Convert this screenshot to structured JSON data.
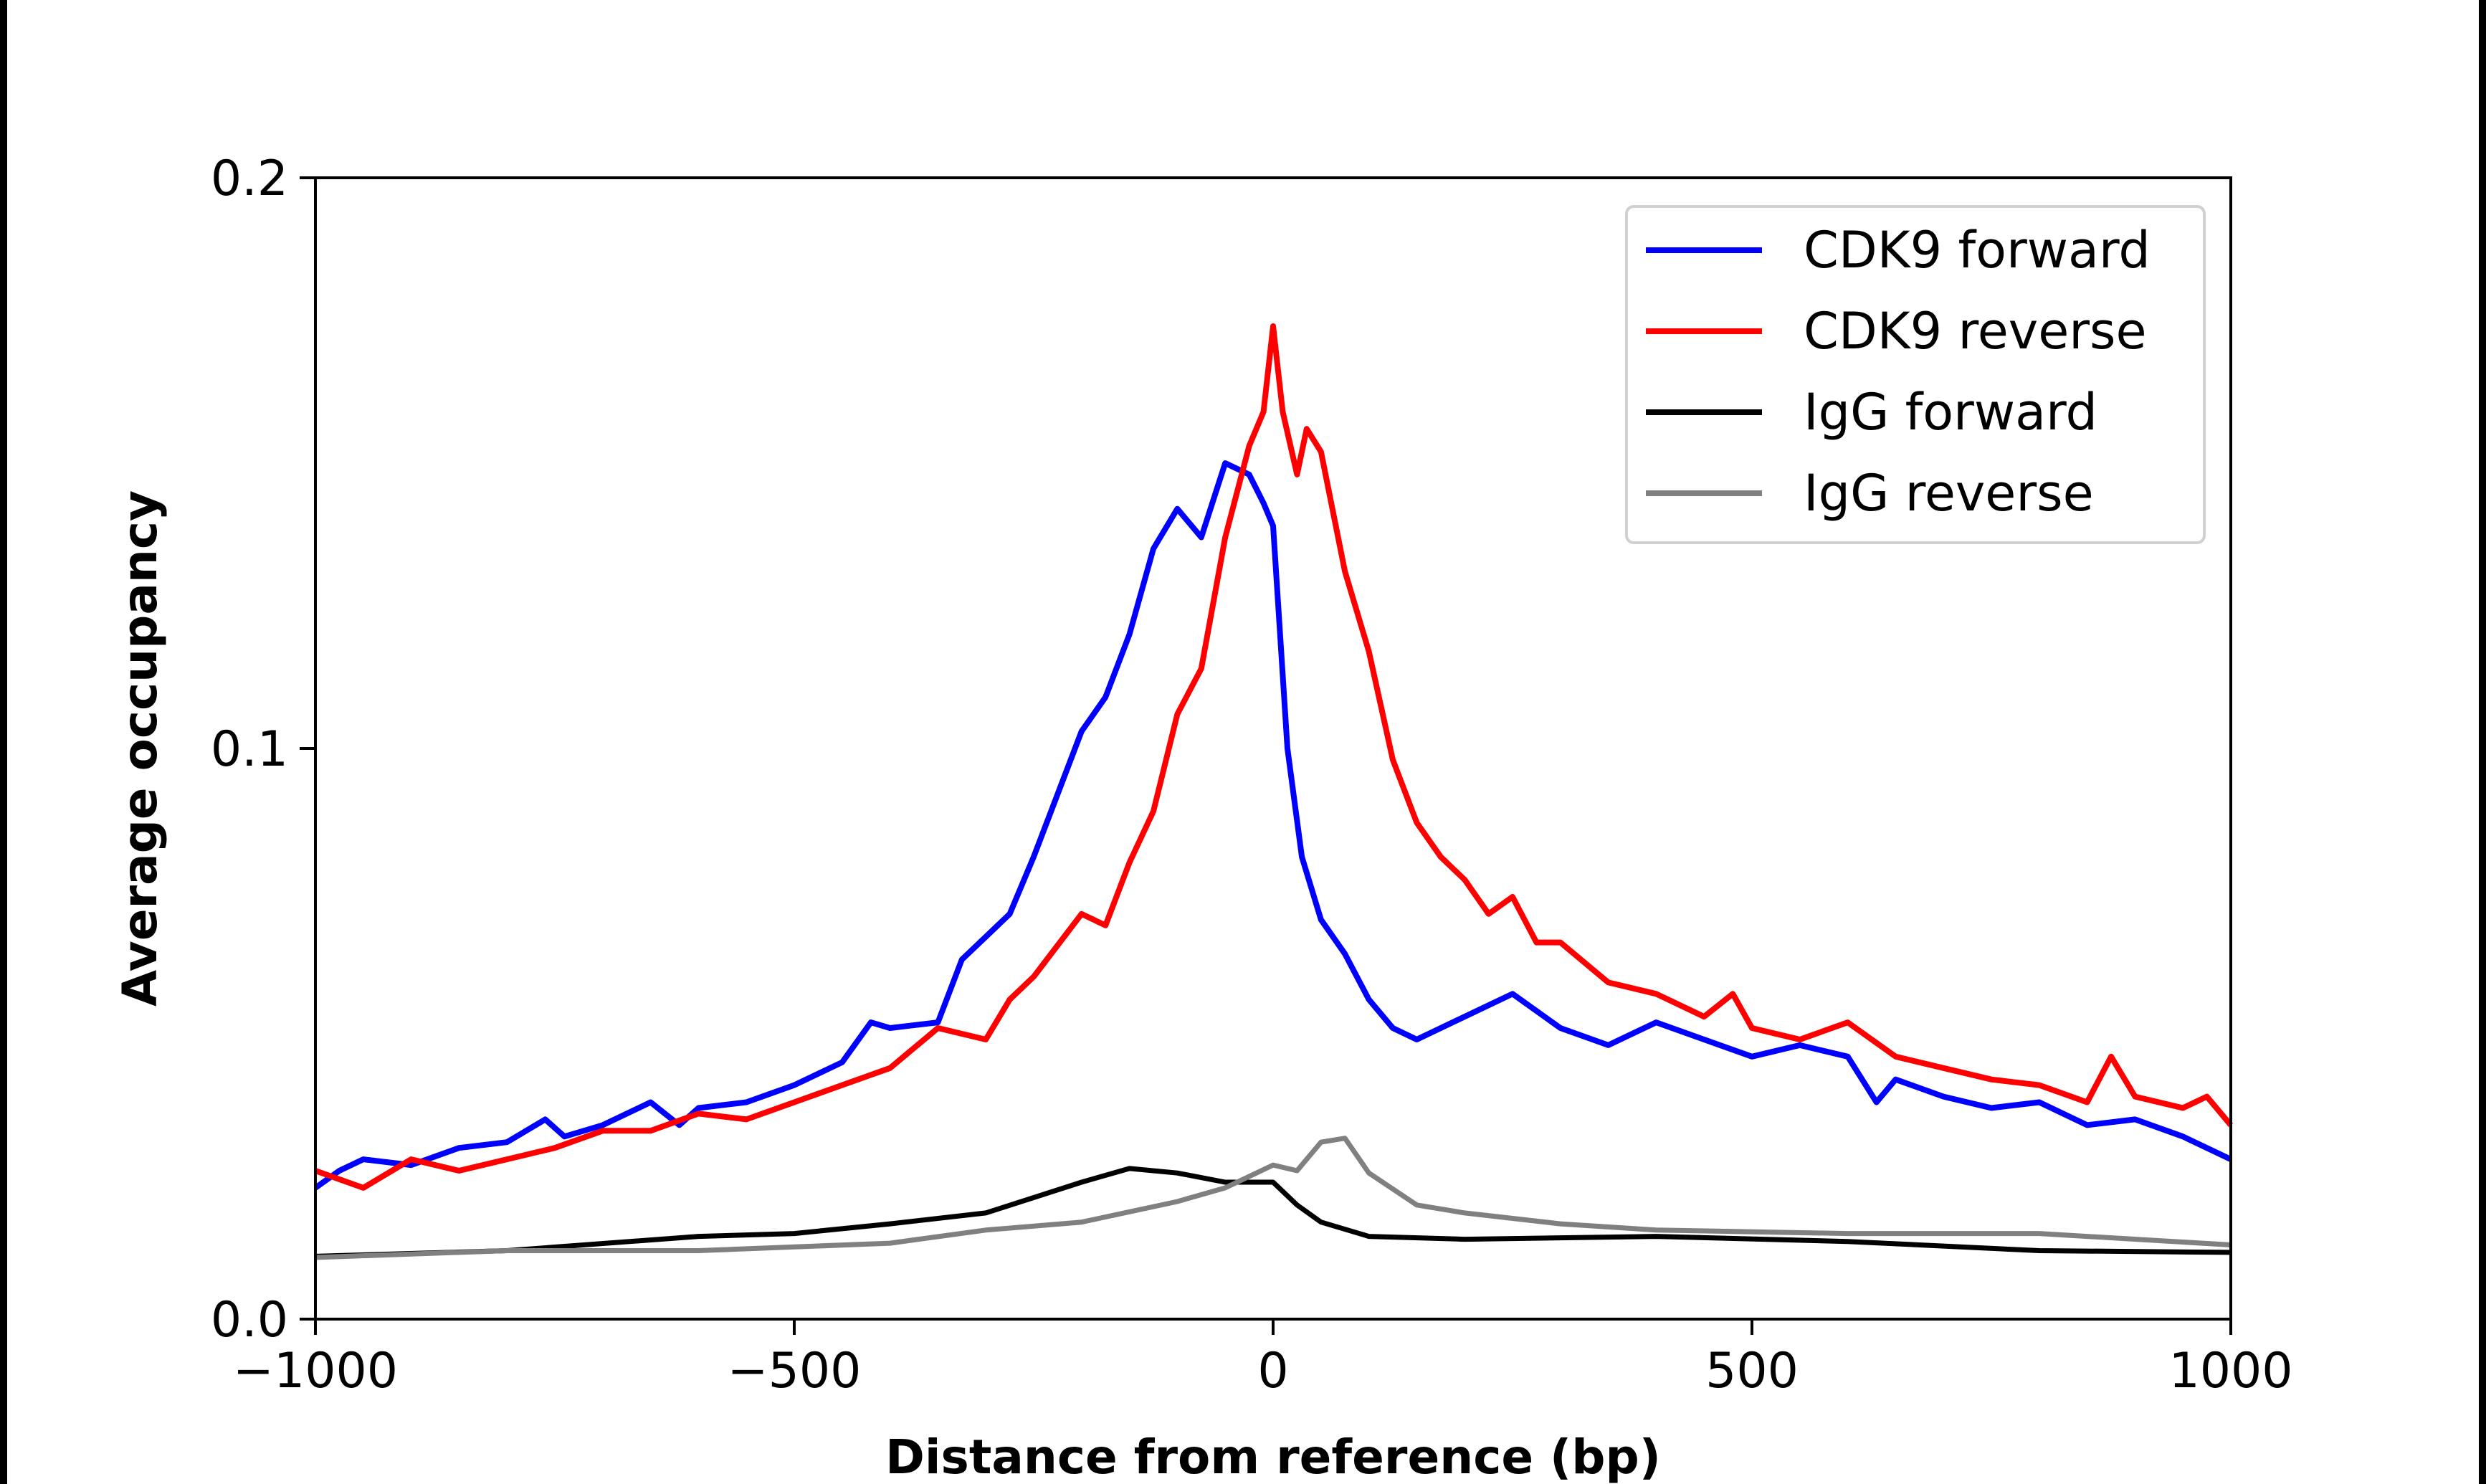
{
  "chart_data": {
    "type": "line",
    "title": "",
    "xlabel": "Distance from reference (bp)",
    "ylabel": "Average occupancy",
    "xlim": [
      -1000,
      1000
    ],
    "ylim": [
      0.0,
      0.2
    ],
    "xticks": [
      -1000,
      -500,
      0,
      500,
      1000
    ],
    "xtick_labels": [
      "−1000",
      "−500",
      "0",
      "500",
      "1000"
    ],
    "yticks": [
      0.0,
      0.1,
      0.2
    ],
    "ytick_labels": [
      "0.0",
      "0.1",
      "0.2"
    ],
    "grid": false,
    "legend_position": "top-right",
    "series": [
      {
        "name": "CDK9 forward",
        "color": "#0000ff",
        "x": [
          -1000,
          -975,
          -950,
          -900,
          -850,
          -800,
          -760,
          -740,
          -700,
          -650,
          -620,
          -600,
          -550,
          -500,
          -450,
          -420,
          -400,
          -350,
          -325,
          -300,
          -275,
          -250,
          -225,
          -200,
          -175,
          -150,
          -125,
          -100,
          -75,
          -50,
          -25,
          -10,
          0,
          15,
          30,
          50,
          75,
          100,
          125,
          150,
          200,
          250,
          300,
          350,
          400,
          450,
          500,
          550,
          600,
          630,
          650,
          700,
          750,
          800,
          850,
          900,
          950,
          1000
        ],
        "y": [
          0.023,
          0.026,
          0.028,
          0.027,
          0.03,
          0.031,
          0.035,
          0.032,
          0.034,
          0.038,
          0.034,
          0.037,
          0.038,
          0.041,
          0.045,
          0.052,
          0.051,
          0.052,
          0.063,
          0.067,
          0.071,
          0.081,
          0.092,
          0.103,
          0.109,
          0.12,
          0.135,
          0.142,
          0.137,
          0.15,
          0.148,
          0.143,
          0.139,
          0.1,
          0.081,
          0.07,
          0.064,
          0.056,
          0.051,
          0.049,
          0.053,
          0.057,
          0.051,
          0.048,
          0.052,
          0.049,
          0.046,
          0.048,
          0.046,
          0.038,
          0.042,
          0.039,
          0.037,
          0.038,
          0.034,
          0.035,
          0.032,
          0.028
        ]
      },
      {
        "name": "CDK9 reverse",
        "color": "#ff0000",
        "x": [
          -1000,
          -950,
          -900,
          -850,
          -800,
          -750,
          -700,
          -650,
          -600,
          -550,
          -500,
          -450,
          -400,
          -350,
          -300,
          -275,
          -250,
          -200,
          -175,
          -150,
          -125,
          -100,
          -75,
          -50,
          -25,
          -10,
          0,
          10,
          25,
          35,
          50,
          75,
          100,
          125,
          150,
          175,
          200,
          225,
          250,
          275,
          300,
          350,
          400,
          450,
          480,
          500,
          550,
          600,
          650,
          700,
          750,
          800,
          850,
          875,
          900,
          950,
          975,
          1000
        ],
        "y": [
          0.026,
          0.023,
          0.028,
          0.026,
          0.028,
          0.03,
          0.033,
          0.033,
          0.036,
          0.035,
          0.038,
          0.041,
          0.044,
          0.051,
          0.049,
          0.056,
          0.06,
          0.071,
          0.069,
          0.08,
          0.089,
          0.106,
          0.114,
          0.137,
          0.153,
          0.159,
          0.174,
          0.159,
          0.148,
          0.156,
          0.152,
          0.131,
          0.117,
          0.098,
          0.087,
          0.081,
          0.077,
          0.071,
          0.074,
          0.066,
          0.066,
          0.059,
          0.057,
          0.053,
          0.057,
          0.051,
          0.049,
          0.052,
          0.046,
          0.044,
          0.042,
          0.041,
          0.038,
          0.046,
          0.039,
          0.037,
          0.039,
          0.034
        ]
      },
      {
        "name": "IgG forward",
        "color": "#000000",
        "x": [
          -1000,
          -800,
          -600,
          -500,
          -400,
          -300,
          -200,
          -150,
          -100,
          -50,
          0,
          25,
          50,
          100,
          200,
          400,
          600,
          800,
          1000
        ],
        "y": [
          0.011,
          0.012,
          0.0145,
          0.015,
          0.0167,
          0.0186,
          0.024,
          0.0264,
          0.0256,
          0.024,
          0.024,
          0.02,
          0.017,
          0.0145,
          0.014,
          0.0145,
          0.0136,
          0.012,
          0.0117
        ]
      },
      {
        "name": "IgG reverse",
        "color": "#808080",
        "x": [
          -1000,
          -800,
          -600,
          -400,
          -300,
          -200,
          -100,
          -50,
          0,
          25,
          50,
          75,
          100,
          150,
          200,
          300,
          400,
          600,
          800,
          1000
        ],
        "y": [
          0.0108,
          0.012,
          0.012,
          0.0133,
          0.0156,
          0.017,
          0.0206,
          0.023,
          0.027,
          0.026,
          0.031,
          0.0317,
          0.0256,
          0.02,
          0.0186,
          0.0167,
          0.0156,
          0.015,
          0.015,
          0.013
        ]
      }
    ]
  }
}
